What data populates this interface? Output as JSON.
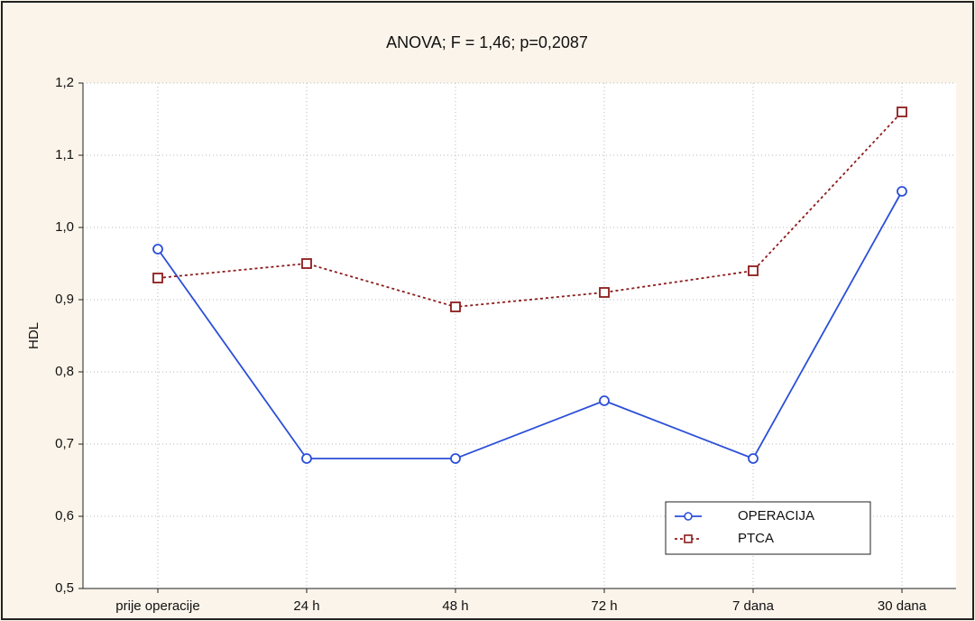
{
  "chart_data": {
    "type": "line",
    "title": "ANOVA;  F = 1,46;  p=0,2087",
    "y_label": "HDL",
    "categories": [
      "prije operacije",
      "24 h",
      "48 h",
      "72 h",
      "7 dana",
      "30 dana"
    ],
    "series": [
      {
        "name": "OPERACIJA",
        "color": "#2b4fd8",
        "marker": "circle",
        "values": [
          0.97,
          0.68,
          0.68,
          0.76,
          0.68,
          1.05
        ]
      },
      {
        "name": "PTCA",
        "color": "#8c1c1c",
        "marker": "square",
        "dashed": true,
        "values": [
          0.93,
          0.95,
          0.89,
          0.91,
          0.94,
          1.16
        ]
      }
    ],
    "ylim": [
      0.5,
      1.2
    ],
    "yticks": [
      {
        "value": 0.5,
        "label": "0,5"
      },
      {
        "value": 0.6,
        "label": "0,6"
      },
      {
        "value": 0.7,
        "label": "0,7"
      },
      {
        "value": 0.8,
        "label": "0,8"
      },
      {
        "value": 0.9,
        "label": "0,9"
      },
      {
        "value": 1.0,
        "label": "1,0"
      },
      {
        "value": 1.1,
        "label": "1,1"
      },
      {
        "value": 1.2,
        "label": "1,2"
      }
    ],
    "grid": true,
    "legend": "lower right"
  }
}
